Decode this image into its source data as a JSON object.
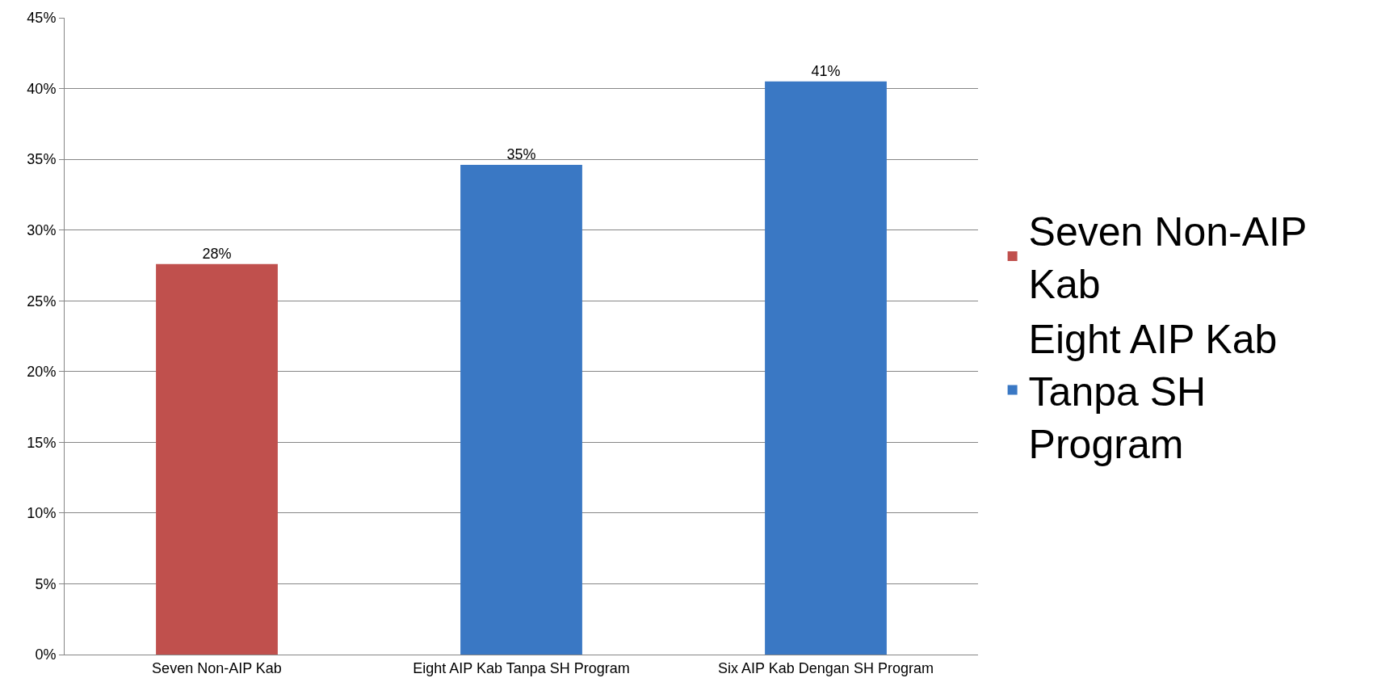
{
  "chart_data": {
    "type": "bar",
    "categories": [
      "Seven Non-AIP Kab",
      "Eight AIP Kab Tanpa SH Program",
      "Six AIP Kab Dengan SH Program"
    ],
    "series": [
      {
        "name": "Seven Non-AIP Kab",
        "color": "#c0504d",
        "values": [
          27.6,
          null,
          null
        ],
        "value_labels": [
          "28%",
          null,
          null
        ]
      },
      {
        "name": "Eight AIP Kab Tanpa SH Program",
        "color": "#3a78c4",
        "values": [
          null,
          34.6,
          40.5
        ],
        "value_labels": [
          null,
          "35%",
          "41%"
        ]
      }
    ],
    "ylim": [
      0,
      45
    ],
    "yticks": [
      {
        "value": 0,
        "label": "0%"
      },
      {
        "value": 5,
        "label": "5%"
      },
      {
        "value": 10,
        "label": "10%"
      },
      {
        "value": 15,
        "label": "15%"
      },
      {
        "value": 20,
        "label": "20%"
      },
      {
        "value": 25,
        "label": "25%"
      },
      {
        "value": 30,
        "label": "30%"
      },
      {
        "value": 35,
        "label": "35%"
      },
      {
        "value": 40,
        "label": "40%"
      },
      {
        "value": 45,
        "label": "45%"
      }
    ],
    "grid": "y",
    "legend": "right"
  }
}
